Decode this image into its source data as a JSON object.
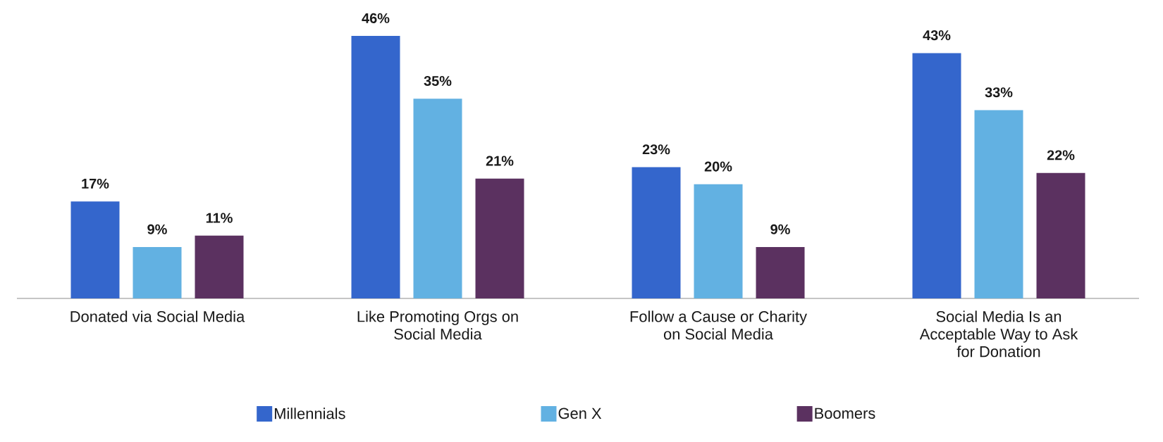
{
  "chart_data": {
    "type": "bar",
    "categories": [
      "Donated via Social Media",
      "Like Promoting Orgs on Social Media",
      "Follow a Cause or Charity on Social Media",
      "Social Media Is an Acceptable Way to Ask for Donation"
    ],
    "series": [
      {
        "name": "Millennials",
        "color": "#3466cc",
        "values": [
          17,
          46,
          23,
          43
        ],
        "value_labels": [
          "17%",
          "46%",
          "23%",
          "43%"
        ]
      },
      {
        "name": "Gen X",
        "color": "#62b1e2",
        "values": [
          9,
          35,
          20,
          33
        ],
        "value_labels": [
          "9%",
          "35%",
          "20%",
          "33%"
        ]
      },
      {
        "name": "Boomers",
        "color": "#5b3160",
        "values": [
          11,
          21,
          9,
          22
        ],
        "value_labels": [
          "11%",
          "21%",
          "9%",
          "22%"
        ]
      }
    ],
    "legend": "bottom"
  }
}
